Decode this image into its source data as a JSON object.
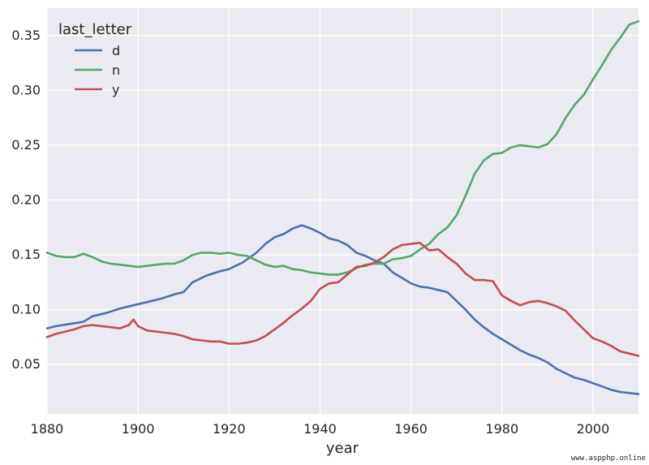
{
  "chart_data": {
    "type": "line",
    "xlabel": "year",
    "ylabel": "",
    "xlim": [
      1880,
      2010
    ],
    "ylim": [
      0.005,
      0.375
    ],
    "xticks": [
      1880,
      1900,
      1920,
      1940,
      1960,
      1980,
      2000
    ],
    "xtick_labels": [
      "1880",
      "1900",
      "1920",
      "1940",
      "1960",
      "1980",
      "2000"
    ],
    "yticks": [
      0.05,
      0.1,
      0.15,
      0.2,
      0.25,
      0.3,
      0.35
    ],
    "ytick_labels": [
      "0.05",
      "0.10",
      "0.15",
      "0.20",
      "0.25",
      "0.30",
      "0.35"
    ],
    "grid": true,
    "legend": {
      "title": "last_letter",
      "placement": "top-left"
    },
    "series": [
      {
        "name": "d",
        "color": "#4c72b0",
        "points": [
          [
            1880,
            0.083
          ],
          [
            1882,
            0.085
          ],
          [
            1885,
            0.087
          ],
          [
            1888,
            0.089
          ],
          [
            1890,
            0.094
          ],
          [
            1893,
            0.097
          ],
          [
            1896,
            0.101
          ],
          [
            1899,
            0.104
          ],
          [
            1902,
            0.107
          ],
          [
            1905,
            0.11
          ],
          [
            1908,
            0.114
          ],
          [
            1910,
            0.116
          ],
          [
            1912,
            0.125
          ],
          [
            1915,
            0.131
          ],
          [
            1918,
            0.135
          ],
          [
            1920,
            0.137
          ],
          [
            1923,
            0.143
          ],
          [
            1926,
            0.152
          ],
          [
            1928,
            0.16
          ],
          [
            1930,
            0.166
          ],
          [
            1932,
            0.169
          ],
          [
            1934,
            0.174
          ],
          [
            1936,
            0.177
          ],
          [
            1938,
            0.174
          ],
          [
            1940,
            0.17
          ],
          [
            1942,
            0.165
          ],
          [
            1944,
            0.163
          ],
          [
            1946,
            0.159
          ],
          [
            1948,
            0.152
          ],
          [
            1950,
            0.149
          ],
          [
            1952,
            0.145
          ],
          [
            1954,
            0.142
          ],
          [
            1956,
            0.134
          ],
          [
            1958,
            0.129
          ],
          [
            1960,
            0.124
          ],
          [
            1962,
            0.121
          ],
          [
            1964,
            0.12
          ],
          [
            1966,
            0.118
          ],
          [
            1968,
            0.116
          ],
          [
            1970,
            0.108
          ],
          [
            1972,
            0.1
          ],
          [
            1974,
            0.091
          ],
          [
            1976,
            0.084
          ],
          [
            1978,
            0.078
          ],
          [
            1980,
            0.073
          ],
          [
            1982,
            0.068
          ],
          [
            1984,
            0.063
          ],
          [
            1986,
            0.059
          ],
          [
            1988,
            0.056
          ],
          [
            1990,
            0.052
          ],
          [
            1992,
            0.046
          ],
          [
            1994,
            0.042
          ],
          [
            1996,
            0.038
          ],
          [
            1998,
            0.036
          ],
          [
            2000,
            0.033
          ],
          [
            2002,
            0.03
          ],
          [
            2004,
            0.027
          ],
          [
            2006,
            0.025
          ],
          [
            2008,
            0.024
          ],
          [
            2010,
            0.023
          ]
        ]
      },
      {
        "name": "n",
        "color": "#55a868",
        "points": [
          [
            1880,
            0.152
          ],
          [
            1882,
            0.149
          ],
          [
            1884,
            0.148
          ],
          [
            1886,
            0.148
          ],
          [
            1888,
            0.151
          ],
          [
            1890,
            0.148
          ],
          [
            1892,
            0.144
          ],
          [
            1894,
            0.142
          ],
          [
            1896,
            0.141
          ],
          [
            1898,
            0.14
          ],
          [
            1900,
            0.139
          ],
          [
            1902,
            0.14
          ],
          [
            1904,
            0.141
          ],
          [
            1906,
            0.142
          ],
          [
            1908,
            0.142
          ],
          [
            1910,
            0.145
          ],
          [
            1912,
            0.15
          ],
          [
            1914,
            0.152
          ],
          [
            1916,
            0.152
          ],
          [
            1918,
            0.151
          ],
          [
            1920,
            0.152
          ],
          [
            1922,
            0.15
          ],
          [
            1924,
            0.149
          ],
          [
            1926,
            0.145
          ],
          [
            1928,
            0.141
          ],
          [
            1930,
            0.139
          ],
          [
            1932,
            0.14
          ],
          [
            1934,
            0.137
          ],
          [
            1936,
            0.136
          ],
          [
            1938,
            0.134
          ],
          [
            1940,
            0.133
          ],
          [
            1942,
            0.132
          ],
          [
            1944,
            0.132
          ],
          [
            1946,
            0.134
          ],
          [
            1948,
            0.138
          ],
          [
            1950,
            0.141
          ],
          [
            1952,
            0.142
          ],
          [
            1954,
            0.142
          ],
          [
            1956,
            0.146
          ],
          [
            1958,
            0.147
          ],
          [
            1960,
            0.149
          ],
          [
            1962,
            0.155
          ],
          [
            1964,
            0.16
          ],
          [
            1966,
            0.169
          ],
          [
            1968,
            0.175
          ],
          [
            1970,
            0.186
          ],
          [
            1972,
            0.204
          ],
          [
            1974,
            0.224
          ],
          [
            1976,
            0.236
          ],
          [
            1978,
            0.242
          ],
          [
            1980,
            0.243
          ],
          [
            1982,
            0.248
          ],
          [
            1984,
            0.25
          ],
          [
            1986,
            0.249
          ],
          [
            1988,
            0.248
          ],
          [
            1990,
            0.251
          ],
          [
            1992,
            0.26
          ],
          [
            1994,
            0.275
          ],
          [
            1996,
            0.287
          ],
          [
            1998,
            0.296
          ],
          [
            2000,
            0.31
          ],
          [
            2002,
            0.323
          ],
          [
            2004,
            0.337
          ],
          [
            2006,
            0.348
          ],
          [
            2008,
            0.36
          ],
          [
            2010,
            0.363
          ]
        ]
      },
      {
        "name": "y",
        "color": "#c44e52",
        "points": [
          [
            1880,
            0.075
          ],
          [
            1882,
            0.078
          ],
          [
            1884,
            0.08
          ],
          [
            1886,
            0.082
          ],
          [
            1888,
            0.085
          ],
          [
            1890,
            0.086
          ],
          [
            1892,
            0.085
          ],
          [
            1894,
            0.084
          ],
          [
            1896,
            0.083
          ],
          [
            1898,
            0.086
          ],
          [
            1899,
            0.091
          ],
          [
            1900,
            0.085
          ],
          [
            1902,
            0.081
          ],
          [
            1904,
            0.08
          ],
          [
            1906,
            0.079
          ],
          [
            1908,
            0.078
          ],
          [
            1910,
            0.076
          ],
          [
            1912,
            0.073
          ],
          [
            1914,
            0.072
          ],
          [
            1916,
            0.071
          ],
          [
            1918,
            0.071
          ],
          [
            1920,
            0.069
          ],
          [
            1922,
            0.069
          ],
          [
            1924,
            0.07
          ],
          [
            1926,
            0.072
          ],
          [
            1928,
            0.076
          ],
          [
            1930,
            0.082
          ],
          [
            1932,
            0.088
          ],
          [
            1934,
            0.095
          ],
          [
            1936,
            0.101
          ],
          [
            1938,
            0.108
          ],
          [
            1940,
            0.119
          ],
          [
            1942,
            0.124
          ],
          [
            1944,
            0.125
          ],
          [
            1946,
            0.132
          ],
          [
            1948,
            0.139
          ],
          [
            1950,
            0.14
          ],
          [
            1952,
            0.143
          ],
          [
            1954,
            0.148
          ],
          [
            1956,
            0.155
          ],
          [
            1958,
            0.159
          ],
          [
            1960,
            0.16
          ],
          [
            1962,
            0.161
          ],
          [
            1964,
            0.154
          ],
          [
            1966,
            0.155
          ],
          [
            1968,
            0.148
          ],
          [
            1970,
            0.142
          ],
          [
            1972,
            0.133
          ],
          [
            1974,
            0.127
          ],
          [
            1976,
            0.127
          ],
          [
            1978,
            0.126
          ],
          [
            1980,
            0.113
          ],
          [
            1982,
            0.108
          ],
          [
            1984,
            0.104
          ],
          [
            1986,
            0.107
          ],
          [
            1988,
            0.108
          ],
          [
            1990,
            0.106
          ],
          [
            1992,
            0.103
          ],
          [
            1994,
            0.099
          ],
          [
            1996,
            0.09
          ],
          [
            1998,
            0.082
          ],
          [
            2000,
            0.074
          ],
          [
            2002,
            0.071
          ],
          [
            2004,
            0.067
          ],
          [
            2006,
            0.062
          ],
          [
            2008,
            0.06
          ],
          [
            2010,
            0.058
          ]
        ]
      }
    ]
  },
  "watermark": "www.aspphp.online"
}
